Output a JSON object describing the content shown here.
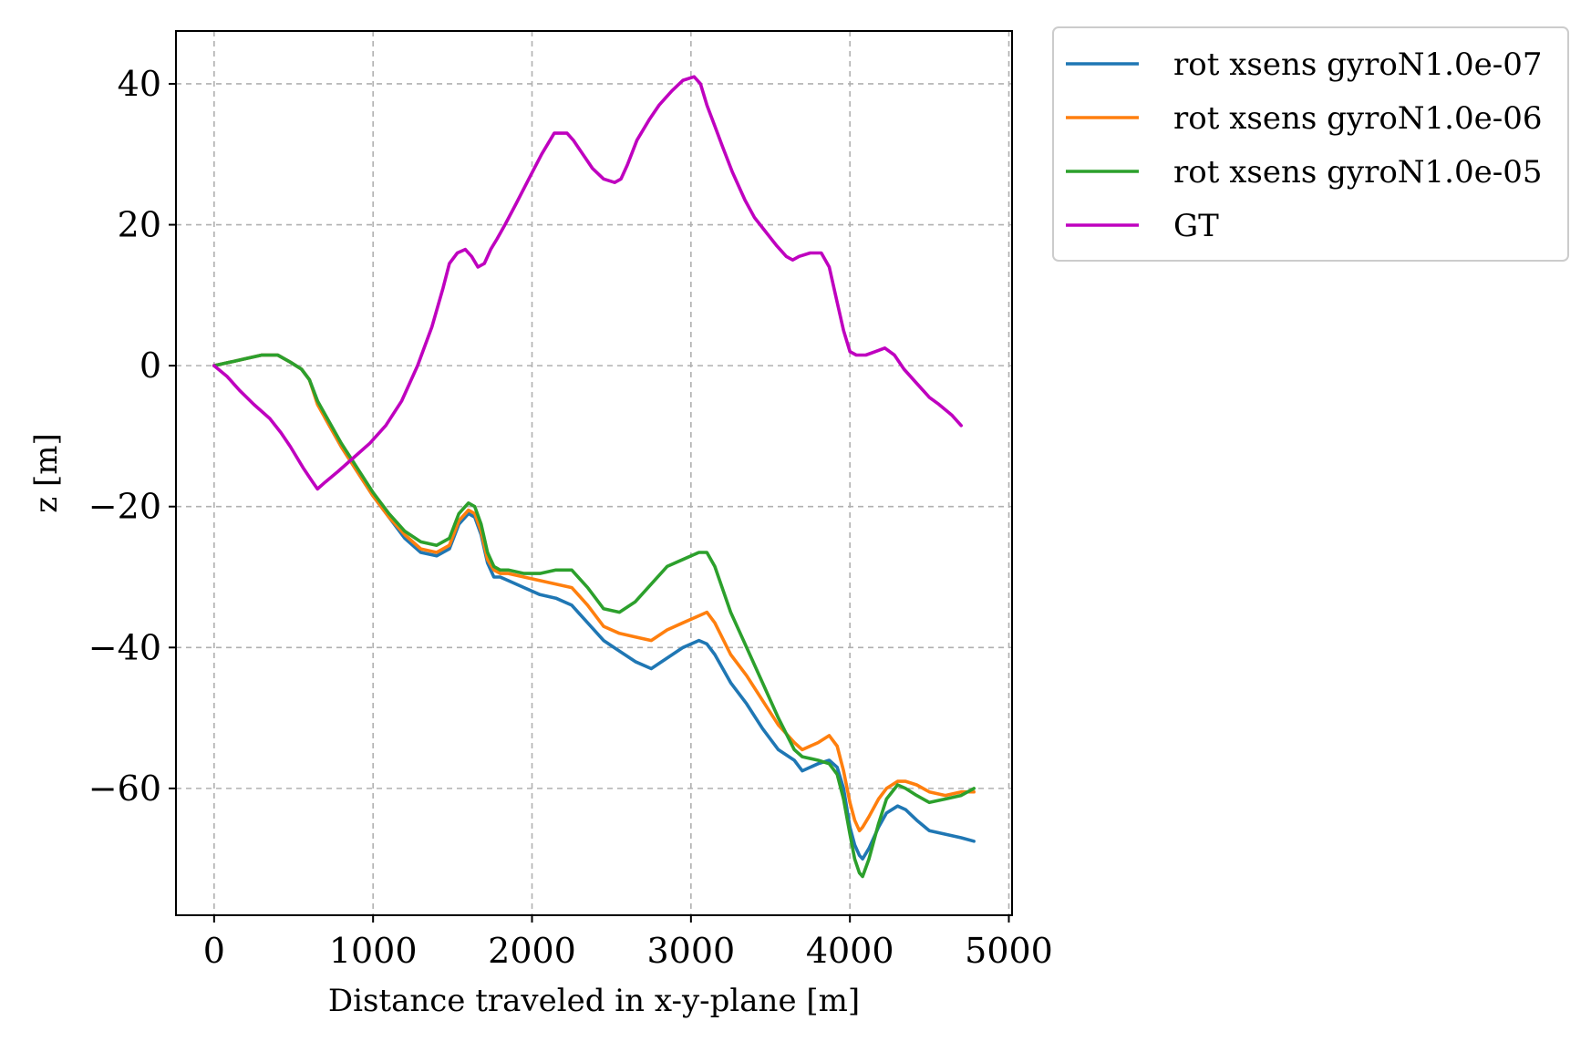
{
  "chart_data": {
    "type": "line",
    "xlabel": "Distance traveled in x-y-plane [m]",
    "ylabel": "z [m]",
    "xlim": [
      -240,
      5020
    ],
    "ylim": [
      -78,
      47.5
    ],
    "xticks": [
      0,
      1000,
      2000,
      3000,
      4000,
      5000
    ],
    "xtick_labels": [
      "0",
      "1000",
      "2000",
      "3000",
      "4000",
      "5000"
    ],
    "yticks": [
      40,
      20,
      0,
      -20,
      -40,
      -60
    ],
    "ytick_labels": [
      "40",
      "20",
      "0",
      "−20",
      "−40",
      "−60"
    ],
    "grid": true,
    "legend_position": "outside-top-right",
    "series": [
      {
        "name": "rot xsens gyroN1.0e-07",
        "color": "#1f77b4",
        "x": [
          0,
          100,
          200,
          300,
          400,
          480,
          550,
          600,
          650,
          700,
          800,
          900,
          1000,
          1100,
          1200,
          1300,
          1400,
          1480,
          1540,
          1600,
          1640,
          1680,
          1720,
          1760,
          1800,
          1850,
          1950,
          2050,
          2150,
          2250,
          2350,
          2450,
          2550,
          2650,
          2750,
          2850,
          2950,
          3050,
          3100,
          3150,
          3250,
          3350,
          3450,
          3550,
          3650,
          3700,
          3800,
          3870,
          3920,
          3960,
          4000,
          4030,
          4060,
          4080,
          4120,
          4180,
          4230,
          4300,
          4350,
          4420,
          4500,
          4600,
          4700,
          4780
        ],
        "y": [
          0,
          0.5,
          1.0,
          1.5,
          1.5,
          0.5,
          -0.5,
          -2,
          -5,
          -7.5,
          -11.5,
          -15,
          -18.5,
          -21.5,
          -24.5,
          -26.5,
          -27,
          -26,
          -22.5,
          -21,
          -21.5,
          -24,
          -28,
          -30,
          -30,
          -30.5,
          -31.5,
          -32.5,
          -33,
          -34,
          -36.5,
          -39,
          -40.5,
          -42,
          -43,
          -41.5,
          -40,
          -39,
          -39.5,
          -41,
          -45,
          -48,
          -51.5,
          -54.5,
          -56,
          -57.5,
          -56.5,
          -56,
          -57,
          -60,
          -65.5,
          -68,
          -69.5,
          -70,
          -68.5,
          -65.5,
          -63.5,
          -62.5,
          -63,
          -64.5,
          -66,
          -66.5,
          -67,
          -67.5
        ]
      },
      {
        "name": "rot xsens gyroN1.0e-06",
        "color": "#ff7f0e",
        "x": [
          0,
          100,
          200,
          300,
          400,
          480,
          550,
          600,
          650,
          700,
          800,
          900,
          1000,
          1100,
          1200,
          1300,
          1400,
          1480,
          1540,
          1600,
          1640,
          1680,
          1720,
          1760,
          1800,
          1850,
          1950,
          2050,
          2150,
          2250,
          2350,
          2450,
          2550,
          2650,
          2750,
          2850,
          2950,
          3050,
          3100,
          3150,
          3250,
          3350,
          3450,
          3550,
          3650,
          3700,
          3800,
          3870,
          3920,
          3960,
          4000,
          4030,
          4060,
          4080,
          4120,
          4180,
          4230,
          4300,
          4350,
          4420,
          4500,
          4600,
          4700,
          4780
        ],
        "y": [
          0,
          0.5,
          1.0,
          1.5,
          1.5,
          0.5,
          -0.5,
          -2,
          -5.5,
          -7.5,
          -11.5,
          -15,
          -18.5,
          -21.5,
          -24.0,
          -26.0,
          -26.5,
          -25.5,
          -22.0,
          -20.5,
          -21.0,
          -23.5,
          -27.5,
          -29.0,
          -29.5,
          -29.5,
          -30.0,
          -30.5,
          -31.0,
          -31.5,
          -34.0,
          -37.0,
          -38.0,
          -38.5,
          -39.0,
          -37.5,
          -36.5,
          -35.5,
          -35.0,
          -36.5,
          -41.0,
          -44.0,
          -47.5,
          -51.0,
          -53.5,
          -54.5,
          -53.5,
          -52.5,
          -54.0,
          -57.5,
          -62.0,
          -64.5,
          -66.0,
          -65.5,
          -64.0,
          -61.5,
          -60.0,
          -59.0,
          -59.0,
          -59.5,
          -60.5,
          -61.0,
          -60.5,
          -60.5
        ]
      },
      {
        "name": "rot xsens gyroN1.0e-05",
        "color": "#2ca02c",
        "x": [
          0,
          100,
          200,
          300,
          400,
          480,
          550,
          600,
          650,
          700,
          800,
          900,
          1000,
          1100,
          1200,
          1300,
          1400,
          1480,
          1540,
          1600,
          1640,
          1680,
          1720,
          1760,
          1800,
          1850,
          1950,
          2050,
          2150,
          2250,
          2350,
          2450,
          2550,
          2650,
          2750,
          2850,
          2950,
          3050,
          3100,
          3150,
          3250,
          3350,
          3450,
          3550,
          3650,
          3700,
          3800,
          3870,
          3920,
          3960,
          4000,
          4030,
          4060,
          4080,
          4120,
          4180,
          4230,
          4300,
          4350,
          4420,
          4500,
          4600,
          4700,
          4780
        ],
        "y": [
          0,
          0.5,
          1.0,
          1.5,
          1.5,
          0.5,
          -0.5,
          -2,
          -5.0,
          -7.0,
          -11.0,
          -14.5,
          -18.0,
          -21.0,
          -23.5,
          -25.0,
          -25.5,
          -24.5,
          -21.0,
          -19.5,
          -20.0,
          -22.5,
          -26.5,
          -28.5,
          -29.0,
          -29.0,
          -29.5,
          -29.5,
          -29.0,
          -29.0,
          -31.5,
          -34.5,
          -35.0,
          -33.5,
          -31.0,
          -28.5,
          -27.5,
          -26.5,
          -26.5,
          -28.5,
          -35.0,
          -40.0,
          -45.0,
          -50.0,
          -54.5,
          -55.5,
          -56.0,
          -56.5,
          -58.0,
          -61.5,
          -66.5,
          -70.0,
          -72.0,
          -72.5,
          -70.0,
          -65.0,
          -61.5,
          -59.5,
          -60.0,
          -61.0,
          -62.0,
          -61.5,
          -61.0,
          -60.0
        ]
      },
      {
        "name": "GT",
        "color": "#bf00bf",
        "x": [
          0,
          80,
          160,
          250,
          350,
          420,
          480,
          560,
          620,
          650,
          700,
          780,
          880,
          980,
          1080,
          1180,
          1280,
          1370,
          1440,
          1480,
          1530,
          1580,
          1620,
          1660,
          1700,
          1740,
          1780,
          1830,
          1900,
          1980,
          2060,
          2140,
          2220,
          2260,
          2320,
          2380,
          2450,
          2520,
          2560,
          2600,
          2660,
          2740,
          2800,
          2880,
          2950,
          3020,
          3060,
          3100,
          3150,
          3200,
          3260,
          3340,
          3400,
          3470,
          3540,
          3600,
          3640,
          3680,
          3750,
          3820,
          3870,
          3920,
          3960,
          4000,
          4040,
          4100,
          4160,
          4220,
          4280,
          4340,
          4420,
          4500,
          4560,
          4640,
          4700
        ],
        "y": [
          0,
          -1.5,
          -3.5,
          -5.5,
          -7.5,
          -9.5,
          -11.5,
          -14.5,
          -16.5,
          -17.5,
          -16.5,
          -15.0,
          -13.0,
          -11.0,
          -8.5,
          -5.0,
          0.0,
          5.5,
          11.0,
          14.5,
          16.0,
          16.5,
          15.5,
          14.0,
          14.5,
          16.5,
          18.0,
          20.0,
          23.0,
          26.5,
          30.0,
          33.0,
          33.0,
          32.0,
          30.0,
          28.0,
          26.5,
          26.0,
          26.5,
          28.5,
          32.0,
          35.0,
          37.0,
          39.0,
          40.5,
          41.0,
          40.0,
          37.0,
          34.0,
          31.0,
          27.5,
          23.5,
          21.0,
          19.0,
          17.0,
          15.5,
          15.0,
          15.5,
          16.0,
          16.0,
          14.0,
          9.0,
          5.0,
          2.0,
          1.5,
          1.5,
          2.0,
          2.5,
          1.5,
          -0.5,
          -2.5,
          -4.5,
          -5.5,
          -7.0,
          -8.5
        ]
      }
    ]
  }
}
